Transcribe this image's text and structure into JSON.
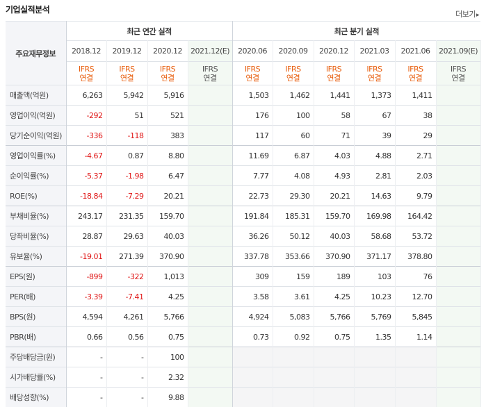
{
  "section": {
    "title": "기업실적분석",
    "more_label": "더보기",
    "more_arrow": "▸"
  },
  "header": {
    "row_label": "주요재무정보",
    "annual_group": "최근 연간 실적",
    "quarter_group": "최근 분기 실적",
    "annual_periods": [
      "2018.12",
      "2019.12",
      "2020.12"
    ],
    "annual_est": {
      "period": "2021.12",
      "mark": "(E)"
    },
    "quarter_periods": [
      "2020.06",
      "2020.09",
      "2020.12",
      "2021.03",
      "2021.06"
    ],
    "quarter_est": {
      "period": "2021.09",
      "mark": "(E)"
    },
    "ifrs_top": "IFRS",
    "ifrs_bottom": "연결"
  },
  "rows": [
    {
      "label": "매출액(억원)",
      "annual": [
        "6,263",
        "5,942",
        "5,916",
        ""
      ],
      "quarter": [
        "1,503",
        "1,462",
        "1,441",
        "1,373",
        "1,411",
        ""
      ]
    },
    {
      "label": "영업이익(억원)",
      "annual": [
        "-292",
        "51",
        "521",
        ""
      ],
      "quarter": [
        "176",
        "100",
        "58",
        "67",
        "38",
        ""
      ]
    },
    {
      "label": "당기순이익(억원)",
      "annual": [
        "-336",
        "-118",
        "383",
        ""
      ],
      "quarter": [
        "117",
        "60",
        "71",
        "39",
        "29",
        ""
      ]
    },
    {
      "label": "영업이익률(%)",
      "annual": [
        "-4.67",
        "0.87",
        "8.80",
        ""
      ],
      "quarter": [
        "11.69",
        "6.87",
        "4.03",
        "4.88",
        "2.71",
        ""
      ]
    },
    {
      "label": "순이익률(%)",
      "annual": [
        "-5.37",
        "-1.98",
        "6.47",
        ""
      ],
      "quarter": [
        "7.77",
        "4.08",
        "4.93",
        "2.81",
        "2.03",
        ""
      ]
    },
    {
      "label": "ROE(%)",
      "annual": [
        "-18.84",
        "-7.29",
        "20.21",
        ""
      ],
      "quarter": [
        "22.73",
        "29.30",
        "20.21",
        "14.63",
        "9.79",
        ""
      ]
    },
    {
      "label": "부채비율(%)",
      "annual": [
        "243.17",
        "231.35",
        "159.70",
        ""
      ],
      "quarter": [
        "191.84",
        "185.31",
        "159.70",
        "169.98",
        "164.42",
        ""
      ]
    },
    {
      "label": "당좌비율(%)",
      "annual": [
        "28.87",
        "29.63",
        "40.03",
        ""
      ],
      "quarter": [
        "36.26",
        "50.12",
        "40.03",
        "58.68",
        "53.72",
        ""
      ]
    },
    {
      "label": "유보율(%)",
      "annual": [
        "-19.01",
        "271.39",
        "370.90",
        ""
      ],
      "quarter": [
        "337.78",
        "353.66",
        "370.90",
        "371.17",
        "378.80",
        ""
      ]
    },
    {
      "label": "EPS(원)",
      "annual": [
        "-899",
        "-322",
        "1,013",
        ""
      ],
      "quarter": [
        "309",
        "159",
        "189",
        "103",
        "76",
        ""
      ]
    },
    {
      "label": "PER(배)",
      "annual": [
        "-3.39",
        "-7.41",
        "4.25",
        ""
      ],
      "quarter": [
        "3.58",
        "3.61",
        "4.25",
        "10.23",
        "12.70",
        ""
      ]
    },
    {
      "label": "BPS(원)",
      "annual": [
        "4,594",
        "4,261",
        "5,766",
        ""
      ],
      "quarter": [
        "4,924",
        "5,083",
        "5,766",
        "5,769",
        "5,845",
        ""
      ]
    },
    {
      "label": "PBR(배)",
      "annual": [
        "0.66",
        "0.56",
        "0.75",
        ""
      ],
      "quarter": [
        "0.73",
        "0.92",
        "0.75",
        "1.35",
        "1.14",
        ""
      ]
    },
    {
      "label": "주당배당금(원)",
      "annual": [
        "-",
        "-",
        "100",
        ""
      ],
      "quarter": [
        "",
        "",
        "",
        "",
        "",
        ""
      ]
    },
    {
      "label": "시가배당률(%)",
      "annual": [
        "-",
        "-",
        "2.32",
        ""
      ],
      "quarter": [
        "",
        "",
        "",
        "",
        "",
        ""
      ]
    },
    {
      "label": "배당성향(%)",
      "annual": [
        "-",
        "-",
        "9.88",
        ""
      ],
      "quarter": [
        "",
        "",
        "",
        "",
        "",
        ""
      ]
    }
  ]
}
